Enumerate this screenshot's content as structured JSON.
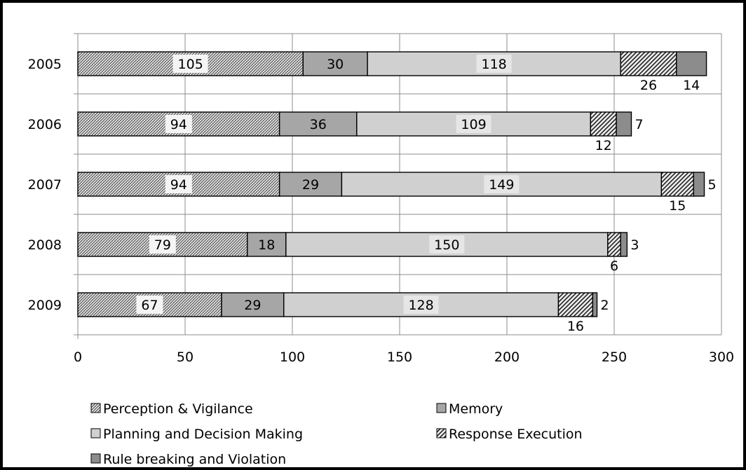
{
  "chart_data": {
    "type": "bar",
    "orientation": "horizontal",
    "stacked": true,
    "categories": [
      "2005",
      "2006",
      "2007",
      "2008",
      "2009"
    ],
    "series": [
      {
        "name": "Perception & Vigilance",
        "values": [
          105,
          94,
          94,
          79,
          67
        ],
        "color": "#c8c8c8",
        "pattern": "crosshatch"
      },
      {
        "name": "Memory",
        "values": [
          30,
          36,
          29,
          18,
          29
        ],
        "color": "#a6a6a6",
        "pattern": "solid"
      },
      {
        "name": "Planning and Decision Making",
        "values": [
          118,
          109,
          149,
          150,
          128
        ],
        "color": "#d0d0d0",
        "pattern": "solid"
      },
      {
        "name": "Response Execution",
        "values": [
          26,
          12,
          15,
          6,
          16
        ],
        "color": "#bdbdbd",
        "pattern": "diagonal"
      },
      {
        "name": "Rule breaking and Violation",
        "values": [
          14,
          7,
          5,
          3,
          2
        ],
        "color": "#8c8c8c",
        "pattern": "solid"
      }
    ],
    "xlim": [
      0,
      300
    ],
    "xticks": [
      "0",
      "50",
      "100",
      "150",
      "200",
      "250",
      "300"
    ],
    "grid": true,
    "legend_position": "bottom"
  }
}
